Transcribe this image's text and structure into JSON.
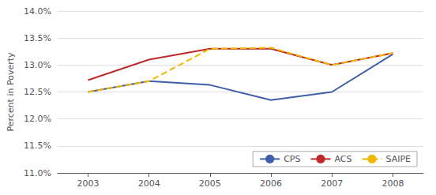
{
  "chart_data": {
    "type": "line",
    "x": [
      2003,
      2004,
      2005,
      2006,
      2007,
      2008
    ],
    "series": [
      {
        "name": "CPS",
        "color": "#3f5fa8",
        "values": [
          12.5,
          12.7,
          12.63,
          12.35,
          12.5,
          13.2
        ]
      },
      {
        "name": "ACS",
        "color": "#be2a2a",
        "values": [
          12.72,
          13.1,
          13.3,
          13.3,
          13.0,
          13.22
        ]
      },
      {
        "name": "SAIPE",
        "color": "#f0b800",
        "line_style": "dashed",
        "values": [
          12.5,
          12.7,
          13.3,
          13.32,
          13.0,
          13.22
        ]
      }
    ],
    "ylabel": "Percent in Poverty",
    "xlim": [
      2002.5,
      2008.5
    ],
    "xticks": [
      2003,
      2004,
      2005,
      2006,
      2007,
      2008
    ],
    "ylim": [
      11.0,
      14.0
    ],
    "yticks": [
      {
        "value": 11.0,
        "label": "11.0%"
      },
      {
        "value": 11.5,
        "label": "11.5%"
      },
      {
        "value": 12.0,
        "label": "12.0%"
      },
      {
        "value": 12.5,
        "label": "12.5%"
      },
      {
        "value": 13.0,
        "label": "13.0%"
      },
      {
        "value": 13.5,
        "label": "13.5%"
      },
      {
        "value": 14.0,
        "label": "14.0%"
      }
    ],
    "grid": true,
    "legend": "lower right"
  }
}
